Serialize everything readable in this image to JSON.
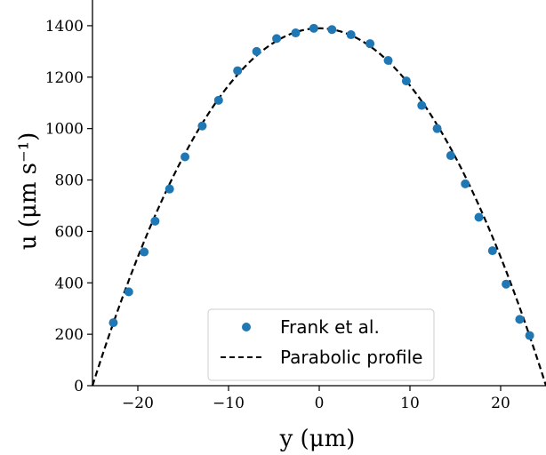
{
  "chart_data": {
    "type": "scatter",
    "xlabel": "y (μm)",
    "ylabel": "u (μm s⁻¹)",
    "xlim": [
      -25,
      25
    ],
    "ylim": [
      0,
      1500
    ],
    "xticks": [
      -20,
      -10,
      0,
      10,
      20
    ],
    "xtick_labels": [
      "−20",
      "−10",
      "0",
      "10",
      "20"
    ],
    "yticks": [
      0,
      200,
      400,
      600,
      800,
      1000,
      1200,
      1400
    ],
    "ytick_labels": [
      "0",
      "200",
      "400",
      "600",
      "800",
      "1000",
      "1200",
      "1400"
    ],
    "grid": false,
    "legend_position": "bottom-center",
    "series": [
      {
        "name": "Frank et al.",
        "kind": "scatter",
        "color": "#1f77b4",
        "points": [
          [
            -22.7,
            245
          ],
          [
            -21.0,
            365
          ],
          [
            -19.3,
            520
          ],
          [
            -18.1,
            640
          ],
          [
            -16.5,
            765
          ],
          [
            -14.8,
            890
          ],
          [
            -12.9,
            1010
          ],
          [
            -11.1,
            1110
          ],
          [
            -9.0,
            1225
          ],
          [
            -6.9,
            1300
          ],
          [
            -4.7,
            1350
          ],
          [
            -2.6,
            1372
          ],
          [
            -0.6,
            1390
          ],
          [
            1.4,
            1385
          ],
          [
            3.5,
            1365
          ],
          [
            5.6,
            1330
          ],
          [
            7.6,
            1265
          ],
          [
            9.6,
            1185
          ],
          [
            11.3,
            1090
          ],
          [
            13.0,
            1000
          ],
          [
            14.5,
            895
          ],
          [
            16.1,
            785
          ],
          [
            17.6,
            655
          ],
          [
            19.1,
            525
          ],
          [
            20.6,
            395
          ],
          [
            22.1,
            258
          ],
          [
            23.2,
            195
          ]
        ]
      },
      {
        "name": "Parabolic profile",
        "kind": "line",
        "style": "dashed",
        "color": "#000000",
        "peak": 1390,
        "half_width": 25
      }
    ]
  }
}
